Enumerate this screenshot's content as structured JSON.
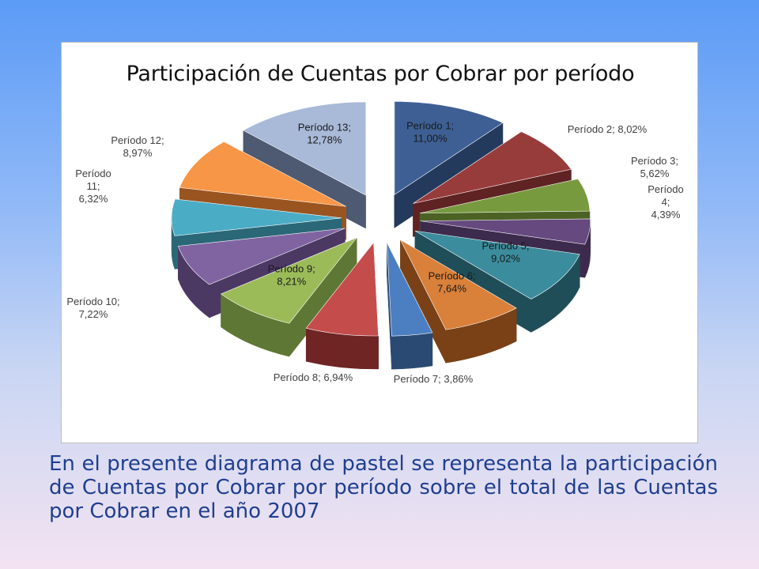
{
  "chart_data": {
    "type": "pie",
    "title": "Participación de Cuentas por Cobrar por período",
    "slices": [
      {
        "label": [
          "Período 1;",
          "11,00%"
        ],
        "value": 11.0,
        "color": "#3d5f94",
        "dark": "#243a5c"
      },
      {
        "label": [
          "Período 2; 8,02%"
        ],
        "value": 8.02,
        "color": "#983c3b",
        "dark": "#5e2322"
      },
      {
        "label": [
          "Período 3;",
          "5,62%"
        ],
        "value": 5.62,
        "color": "#789a3e",
        "dark": "#4b6224"
      },
      {
        "label": [
          "Período",
          "4;",
          "4,39%"
        ],
        "value": 4.39,
        "color": "#65497f",
        "dark": "#3d2b4e"
      },
      {
        "label": [
          "Período 5;",
          "9,02%"
        ],
        "value": 9.02,
        "color": "#3b8c9d",
        "dark": "#1f4e58"
      },
      {
        "label": [
          "Período 6;",
          "7,64%"
        ],
        "value": 7.64,
        "color": "#d9803a",
        "dark": "#7a4116"
      },
      {
        "label": [
          "Período 7; 3,86%"
        ],
        "value": 3.86,
        "color": "#4b7fc1",
        "dark": "#2a4a74"
      },
      {
        "label": [
          "Período 8; 6,94%"
        ],
        "value": 6.94,
        "color": "#c44c4a",
        "dark": "#6e2524"
      },
      {
        "label": [
          "Período 9;",
          "8,21%"
        ],
        "value": 8.21,
        "color": "#9bbb59",
        "dark": "#5f7734"
      },
      {
        "label": [
          "Período 10;",
          "7,22%"
        ],
        "value": 7.22,
        "color": "#8064a2",
        "dark": "#4b3863"
      },
      {
        "label": [
          "Período",
          "11;",
          "6,32%"
        ],
        "value": 6.32,
        "color": "#4bacc6",
        "dark": "#2a6878"
      },
      {
        "label": [
          "Período 12;",
          "8,97%"
        ],
        "value": 8.97,
        "color": "#f79646",
        "dark": "#9a5420"
      },
      {
        "label": [
          "Período 13;",
          "12,78%"
        ],
        "value": 12.78,
        "color": "#a9b9d8",
        "dark": "#4d5a72"
      }
    ],
    "legend": "none"
  },
  "description": "En el presente diagrama de pastel se representa la participación de Cuentas por Cobrar por período sobre el total de las Cuentas por Cobrar en el año 2007"
}
